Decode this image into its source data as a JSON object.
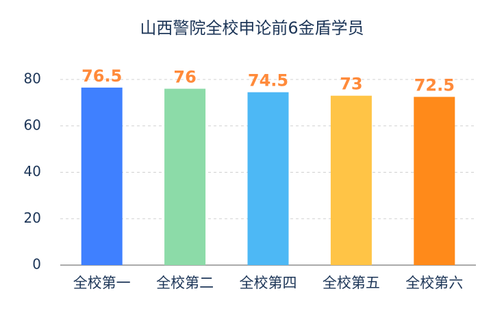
{
  "chart_data": {
    "type": "bar",
    "title": "山西警院全校申论前6金盾学员",
    "categories": [
      "全校第一",
      "全校第二",
      "全校第四",
      "全校第五",
      "全校第六"
    ],
    "values": [
      76.5,
      76,
      74.5,
      73,
      72.5
    ],
    "colors": [
      "#3f80ff",
      "#8cdba8",
      "#4db8f5",
      "#ffc446",
      "#ff8a1a"
    ],
    "label_color": "#ff8a3a",
    "ylim": [
      0,
      80
    ],
    "yticks": [
      0,
      20,
      40,
      60,
      80
    ],
    "grid": true
  }
}
